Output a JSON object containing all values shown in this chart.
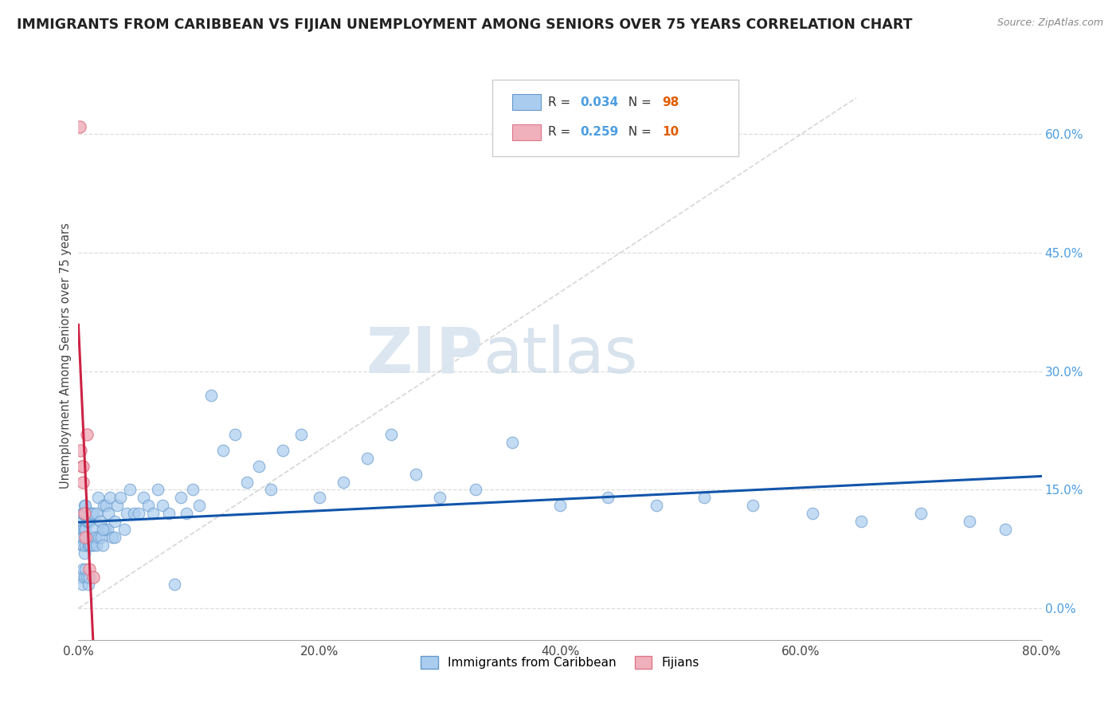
{
  "title": "IMMIGRANTS FROM CARIBBEAN VS FIJIAN UNEMPLOYMENT AMONG SENIORS OVER 75 YEARS CORRELATION CHART",
  "source": "Source: ZipAtlas.com",
  "ylabel": "Unemployment Among Seniors over 75 years",
  "xlim": [
    0.0,
    0.8
  ],
  "ylim": [
    -0.04,
    0.68
  ],
  "xticks": [
    0.0,
    0.2,
    0.4,
    0.6,
    0.8
  ],
  "xticklabels": [
    "0.0%",
    "20.0%",
    "40.0%",
    "60.0%",
    "80.0%"
  ],
  "yticks_right": [
    0.0,
    0.15,
    0.3,
    0.45,
    0.6
  ],
  "yticklabels_right": [
    "0.0%",
    "15.0%",
    "30.0%",
    "45.0%",
    "60.0%"
  ],
  "R_caribbean": 0.034,
  "N_caribbean": 98,
  "R_fijian": 0.259,
  "N_fijian": 10,
  "watermark_zip": "ZIP",
  "watermark_atlas": "atlas",
  "legend_R_color": "#4d9de0",
  "legend_N_color": "#e05c00",
  "caribbean_color": "#aaccee",
  "fijian_color": "#f0b0bc",
  "caribbean_edge": "#6699cc",
  "fijian_edge": "#dd7788",
  "regression_caribbean_color": "#1155aa",
  "regression_fijian_color": "#cc2244",
  "diagonal_color": "#cccccc",
  "blue_x": [
    0.001,
    0.002,
    0.002,
    0.003,
    0.003,
    0.003,
    0.004,
    0.004,
    0.004,
    0.005,
    0.005,
    0.005,
    0.006,
    0.006,
    0.006,
    0.007,
    0.007,
    0.008,
    0.008,
    0.009,
    0.009,
    0.01,
    0.01,
    0.011,
    0.011,
    0.012,
    0.012,
    0.013,
    0.014,
    0.015,
    0.015,
    0.016,
    0.017,
    0.018,
    0.019,
    0.02,
    0.021,
    0.022,
    0.023,
    0.024,
    0.025,
    0.026,
    0.028,
    0.03,
    0.032,
    0.035,
    0.038,
    0.04,
    0.043,
    0.046,
    0.05,
    0.054,
    0.058,
    0.062,
    0.066,
    0.07,
    0.075,
    0.08,
    0.085,
    0.09,
    0.095,
    0.1,
    0.11,
    0.12,
    0.13,
    0.14,
    0.15,
    0.16,
    0.17,
    0.185,
    0.2,
    0.22,
    0.24,
    0.26,
    0.28,
    0.3,
    0.33,
    0.36,
    0.4,
    0.44,
    0.48,
    0.52,
    0.56,
    0.61,
    0.65,
    0.7,
    0.74,
    0.77,
    0.002,
    0.003,
    0.004,
    0.005,
    0.006,
    0.007,
    0.008,
    0.009,
    0.02,
    0.03
  ],
  "blue_y": [
    0.09,
    0.09,
    0.11,
    0.08,
    0.1,
    0.12,
    0.08,
    0.1,
    0.12,
    0.07,
    0.1,
    0.13,
    0.08,
    0.1,
    0.13,
    0.09,
    0.11,
    0.08,
    0.11,
    0.08,
    0.11,
    0.08,
    0.12,
    0.09,
    0.12,
    0.08,
    0.12,
    0.1,
    0.09,
    0.08,
    0.12,
    0.14,
    0.09,
    0.11,
    0.09,
    0.08,
    0.13,
    0.1,
    0.13,
    0.1,
    0.12,
    0.14,
    0.09,
    0.11,
    0.13,
    0.14,
    0.1,
    0.12,
    0.15,
    0.12,
    0.12,
    0.14,
    0.13,
    0.12,
    0.15,
    0.13,
    0.12,
    0.03,
    0.14,
    0.12,
    0.15,
    0.13,
    0.27,
    0.2,
    0.22,
    0.16,
    0.18,
    0.15,
    0.2,
    0.22,
    0.14,
    0.16,
    0.19,
    0.22,
    0.17,
    0.14,
    0.15,
    0.21,
    0.13,
    0.14,
    0.13,
    0.14,
    0.13,
    0.12,
    0.11,
    0.12,
    0.11,
    0.1,
    0.04,
    0.03,
    0.05,
    0.04,
    0.05,
    0.04,
    0.03,
    0.04,
    0.1,
    0.09
  ],
  "pink_x": [
    0.001,
    0.002,
    0.003,
    0.004,
    0.004,
    0.005,
    0.006,
    0.007,
    0.009,
    0.012
  ],
  "pink_y": [
    0.61,
    0.2,
    0.18,
    0.18,
    0.16,
    0.12,
    0.09,
    0.22,
    0.05,
    0.04
  ]
}
